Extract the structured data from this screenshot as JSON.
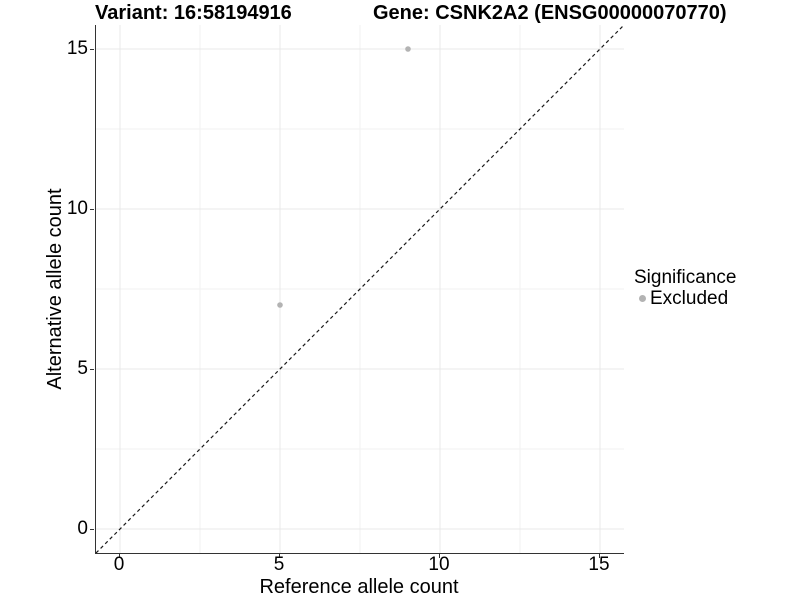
{
  "title_left": "Variant: 16:58194916",
  "title_right": "Gene: CSNK2A2 (ENSG00000070770)",
  "x_axis": {
    "label": "Reference allele count",
    "tick_labels": [
      "0",
      "5",
      "10",
      "15"
    ]
  },
  "y_axis": {
    "label": "Alternative allele count",
    "tick_labels": [
      "0",
      "5",
      "10",
      "15"
    ]
  },
  "legend": {
    "title": "Significance",
    "items": [
      {
        "label": "Excluded",
        "color": "#b3b3b3"
      }
    ]
  },
  "colors": {
    "background": "#ffffff",
    "axis_line": "#333333",
    "grid_major": "#e8e8e8",
    "grid_minor": "#f2f2f2",
    "identity_line": "#1a1a1a",
    "point": "#b3b3b3",
    "text": "#000000"
  },
  "chart_data": {
    "type": "scatter",
    "title": "Variant: 16:58194916 — Gene: CSNK2A2 (ENSG00000070770)",
    "xlabel": "Reference allele count",
    "ylabel": "Alternative allele count",
    "xlim": [
      -0.75,
      15.75
    ],
    "ylim": [
      -0.75,
      15.75
    ],
    "x_ticks": [
      0,
      5,
      10,
      15
    ],
    "y_ticks": [
      0,
      5,
      10,
      15
    ],
    "x_minor_ticks": [
      2.5,
      7.5,
      12.5
    ],
    "y_minor_ticks": [
      2.5,
      7.5,
      12.5
    ],
    "grid": "major and minor gridlines, light gray on white",
    "legend_position": "right",
    "series": [
      {
        "name": "Excluded",
        "color": "#b3b3b3",
        "marker": "circle",
        "point_radius": 2.8,
        "points": [
          [
            5,
            7
          ],
          [
            9,
            15
          ]
        ]
      }
    ],
    "reference_line": {
      "kind": "identity y=x",
      "style": "dashed",
      "color": "#1a1a1a",
      "from": [
        -0.75,
        -0.75
      ],
      "to": [
        15.75,
        15.75
      ]
    }
  }
}
